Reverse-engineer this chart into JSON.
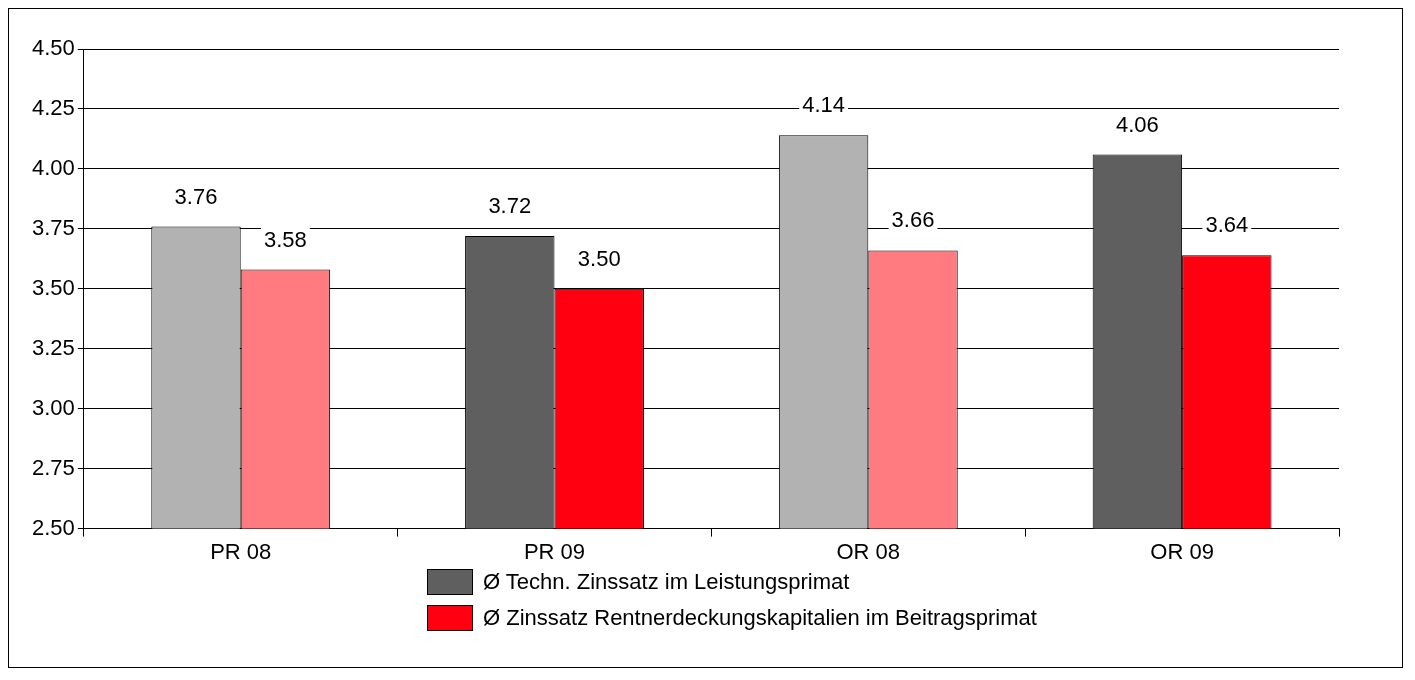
{
  "chart_data": {
    "type": "bar",
    "categories": [
      "PR 08",
      "PR 09",
      "OR 08",
      "OR 09"
    ],
    "series": [
      {
        "name": "Ø Techn. Zinssatz im Leistungsprimat",
        "color": "#5f5f5f",
        "colors": [
          "#b2b2b2",
          "#5f5f5f",
          "#b2b2b2",
          "#5f5f5f"
        ],
        "values": [
          3.76,
          3.72,
          4.14,
          4.06
        ],
        "value_labels": [
          "3.76",
          "3.72",
          "4.14",
          "4.06"
        ]
      },
      {
        "name": "Ø Zinssatz Rentnerdeckungskapitalien im Beitragsprimat",
        "color": "#ff0010",
        "colors": [
          "#ff7b80",
          "#ff0010",
          "#ff7b80",
          "#ff0010"
        ],
        "values": [
          3.58,
          3.5,
          3.66,
          3.64
        ],
        "value_labels": [
          "3.58",
          "3.50",
          "3.66",
          "3.64"
        ]
      }
    ],
    "ylim": [
      2.5,
      4.5
    ],
    "yticks": [
      {
        "value": 2.5,
        "label": "2.50"
      },
      {
        "value": 2.75,
        "label": "2.75"
      },
      {
        "value": 3,
        "label": "3.00"
      },
      {
        "value": 3.25,
        "label": "3.25"
      },
      {
        "value": 3.5,
        "label": "3.50"
      },
      {
        "value": 3.75,
        "label": "3.75"
      },
      {
        "value": 4,
        "label": "4.00"
      },
      {
        "value": 4.25,
        "label": "4.25"
      },
      {
        "value": 4.5,
        "label": "4.50"
      }
    ],
    "grid": "y",
    "legend": "bottom"
  }
}
